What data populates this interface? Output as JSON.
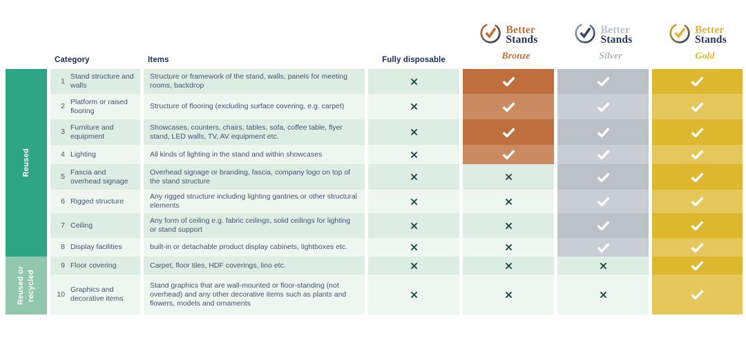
{
  "header": {
    "category_label": "Category",
    "items_label": "Items",
    "fully_disposable_label": "Fully disposable",
    "tiers": [
      {
        "name": "Bronze",
        "better": "Better",
        "stands": "Stands",
        "accent": "#C0703C",
        "stands_color": "#22355C",
        "name_color": "#C0703C",
        "check_color": "#C0703C",
        "ring_from": "#C8793F",
        "ring_to": "#2C3C56"
      },
      {
        "name": "Silver",
        "better": "Better",
        "stands": "Stands",
        "accent": "#B9C0C7",
        "stands_color": "#22355C",
        "name_color": "#AEB6BE",
        "check_color": "#31465F",
        "ring_from": "#9FB0BC",
        "ring_to": "#2C3C56"
      },
      {
        "name": "Gold",
        "better": "Better",
        "stands": "Stands",
        "accent": "#E0B42F",
        "stands_color": "#22355C",
        "name_color": "#E0B42F",
        "check_color": "#E0B42F",
        "ring_from": "#E3B52B",
        "ring_to": "#2C3C56"
      }
    ]
  },
  "side_groups": [
    {
      "label": "Reused",
      "rows_covered": "1-8",
      "color": "#2EA583"
    },
    {
      "label": "Reused or recycled",
      "rows_covered": "9-10",
      "color": "#90C7AD"
    }
  ],
  "rows": [
    {
      "num": "1",
      "category": "Stand structure and walls",
      "items": "Structure or framework of the stand, walls, panels for meeting rooms, backdrop",
      "fully": "cross",
      "bronze": "check",
      "silver": "check",
      "gold": "check"
    },
    {
      "num": "2",
      "category": "Platform or raised flooring",
      "items": "Structure of flooring (excluding surface covering, e.g. carpet)",
      "fully": "cross",
      "bronze": "check",
      "silver": "check",
      "gold": "check"
    },
    {
      "num": "3",
      "category": "Furniture and equipment",
      "items": "Showcases, counters, chairs, tables, sofa, coffee table, flyer stand, LED walls, TV, AV equipment etc.",
      "fully": "cross",
      "bronze": "check",
      "silver": "check",
      "gold": "check"
    },
    {
      "num": "4",
      "category": "Lighting",
      "items": "All kinds of lighting in the stand and within showcases",
      "fully": "cross",
      "bronze": "check",
      "silver": "check",
      "gold": "check"
    },
    {
      "num": "5",
      "category": "Fascia and overhead signage",
      "items": "Overhead signage or branding, fascia, company logo on top of the stand structure",
      "fully": "cross",
      "bronze": "cross",
      "silver": "check",
      "gold": "check"
    },
    {
      "num": "6",
      "category": "Rigged structure",
      "items": "Any rigged structure including lighting gantries or other structural elements",
      "fully": "cross",
      "bronze": "cross",
      "silver": "check",
      "gold": "check"
    },
    {
      "num": "7",
      "category": "Ceiling",
      "items": "Any form of ceiling e.g. fabric ceilings, solid ceilings for lighting or stand support",
      "fully": "cross",
      "bronze": "cross",
      "silver": "check",
      "gold": "check"
    },
    {
      "num": "8",
      "category": "Display facilities",
      "items": "built-in or detachable product display cabinets, lightboxes etc.",
      "fully": "cross",
      "bronze": "cross",
      "silver": "check",
      "gold": "check"
    },
    {
      "num": "9",
      "category": "Floor covering",
      "items": "Carpet, floor tiles, HDF coverings, lino etc.",
      "fully": "cross",
      "bronze": "cross",
      "silver": "cross",
      "gold": "check"
    },
    {
      "num": "10",
      "category": "Graphics and decorative items",
      "items": "Stand graphics that are wall-mounted or floor-standing (not overhead) and any other decorative items such as plants and flowers, models and ornaments",
      "fully": "cross",
      "bronze": "cross",
      "silver": "cross",
      "gold": "check"
    }
  ],
  "marks": {
    "check": "check-icon",
    "cross": "cross-icon"
  },
  "colors": {
    "navy": "#1B2B55",
    "body_text": "#44546B",
    "mint_dark": "#DEEDE4",
    "mint_light": "#EEF6F0",
    "cross": "#1D4A48",
    "check": "#FFFFFF",
    "side_reused": "#2EA583",
    "side_recycled": "#90C7AD",
    "bronze_dark": "#BF6F3D",
    "bronze_light": "#CB8A5F",
    "silver_dark": "#BCC1C8",
    "silver_light": "#C9CED4",
    "gold_dark": "#DDB72E",
    "gold_light": "#E6C75C"
  }
}
